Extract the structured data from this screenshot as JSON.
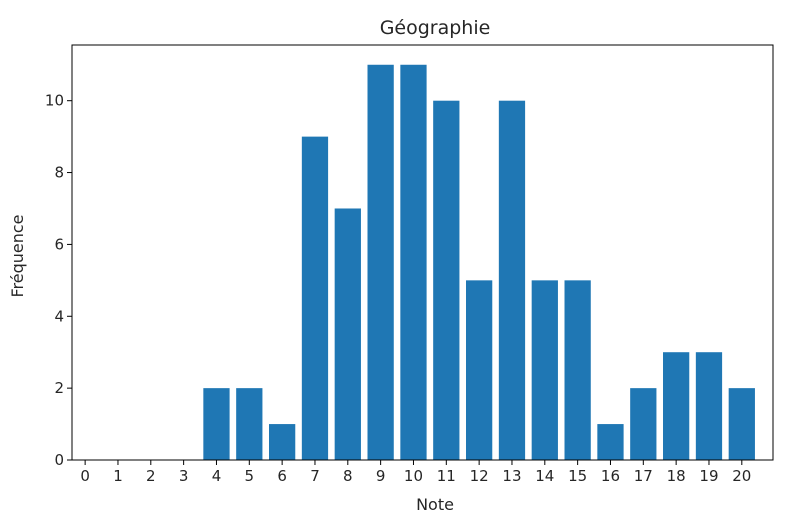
{
  "chart_data": {
    "type": "bar",
    "title": "Géographie",
    "xlabel": "Note",
    "ylabel": "Fréquence",
    "categories": [
      "0",
      "1",
      "2",
      "3",
      "4",
      "5",
      "6",
      "7",
      "8",
      "9",
      "10",
      "11",
      "12",
      "13",
      "14",
      "15",
      "16",
      "17",
      "18",
      "19",
      "20"
    ],
    "values": [
      0,
      0,
      0,
      0,
      2,
      2,
      1,
      9,
      7,
      11,
      11,
      10,
      5,
      10,
      5,
      5,
      1,
      2,
      3,
      3,
      2
    ],
    "ylim": [
      0,
      11.55
    ],
    "yticks": [
      "0",
      "2",
      "4",
      "6",
      "8",
      "10"
    ],
    "bar_color": "#1f77b4",
    "grid": false
  }
}
